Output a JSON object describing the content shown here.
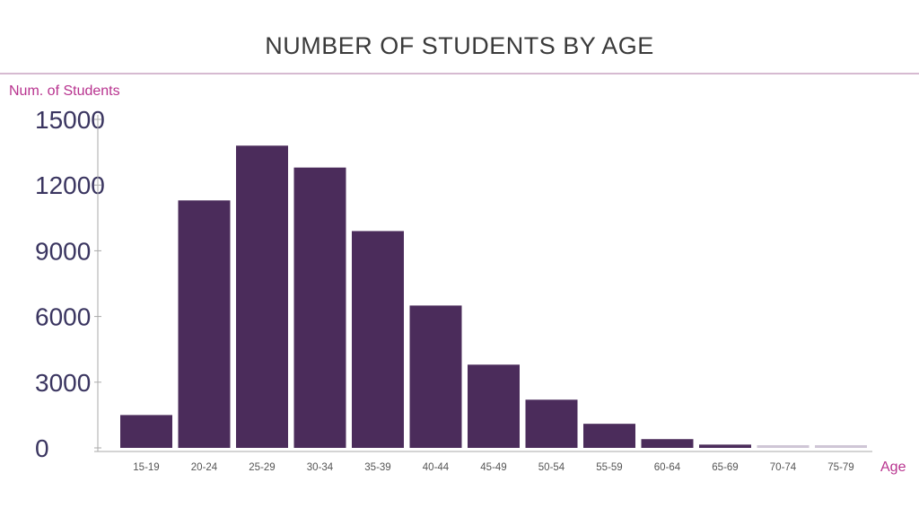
{
  "chart_data": {
    "type": "bar",
    "title": "NUMBER OF STUDENTS BY AGE",
    "xlabel": "Age",
    "ylabel": "Num. of Students",
    "categories": [
      "15-19",
      "20-24",
      "25-29",
      "30-34",
      "35-39",
      "40-44",
      "45-49",
      "50-54",
      "55-59",
      "60-64",
      "65-69",
      "70-74",
      "75-79"
    ],
    "values": [
      1500,
      11300,
      13800,
      12800,
      9900,
      6500,
      3800,
      2200,
      1100,
      400,
      150,
      50,
      30
    ],
    "yticks": [
      "0",
      "3000",
      "6000",
      "9000",
      "12000",
      "15000"
    ],
    "ylim": [
      0,
      15000
    ],
    "grid": false,
    "legend": "none",
    "colors": {
      "bar": "#4b2c5b",
      "bar_light": "#cfc6d6",
      "accent": "#b8338f",
      "title_rule": "#c9a3c2",
      "axis": "#aaaaaa"
    }
  }
}
